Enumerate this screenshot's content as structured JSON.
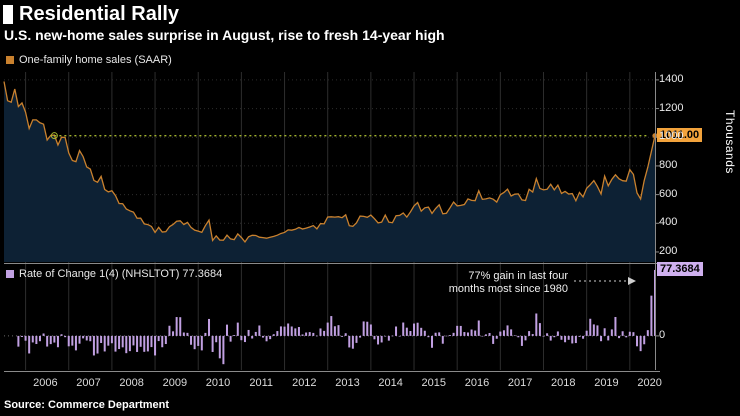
{
  "header": {
    "title": "Residential Rally",
    "subtitle": "U.S. new-home sales surprise in August, rise to fresh 14-year high"
  },
  "top_panel": {
    "legend": "One-family home sales (SAAR)",
    "axis_title": "Thousands",
    "y_ticks": [
      200,
      400,
      600,
      800,
      1000,
      1200,
      1400
    ],
    "last_value_label": "1011.00"
  },
  "bottom_panel": {
    "legend": "Rate of Change 1(4) (NHSLTOT) 77.3684",
    "y_ticks": [
      0
    ],
    "last_value_label": "77.3684",
    "annotation": {
      "line1": "77% gain in last four",
      "line2": "months most since 1980"
    }
  },
  "x_axis": {
    "year_labels": [
      "2006",
      "2007",
      "2008",
      "2009",
      "2010",
      "2011",
      "2012",
      "2013",
      "2014",
      "2015",
      "2016",
      "2017",
      "2018",
      "2019",
      "2020"
    ]
  },
  "footer": {
    "source": "Source: Commerce Department"
  },
  "colors": {
    "background": "#000000",
    "area_fill": "#0d2134",
    "line": "#c9812e",
    "value_box_sales": "#f2a33c",
    "bars": "#c1a0e2",
    "value_box_roc": "#cfb0ef",
    "threshold": "#a4b52f",
    "grid": "#2d2d2d",
    "axis": "#8a8a8a"
  },
  "chart_data": [
    {
      "type": "area",
      "title": "One-family home sales (SAAR)",
      "unit": "thousands, seasonally adjusted annual rate",
      "x_start": "2005-07",
      "x_end": "2020-08",
      "x_freq": "monthly",
      "ylim": [
        130,
        1455
      ],
      "last_value": 1011,
      "threshold_value": 1011,
      "values": [
        1389,
        1255,
        1244,
        1336,
        1214,
        1239,
        1174,
        1061,
        1121,
        1121,
        1101,
        1091,
        981,
        1013,
        1015,
        946,
        1000,
        998,
        891,
        838,
        830,
        907,
        865,
        793,
        778,
        699,
        686,
        727,
        636,
        619,
        627,
        593,
        538,
        536,
        500,
        487,
        478,
        435,
        436,
        396,
        391,
        378,
        336,
        372,
        339,
        342,
        376,
        392,
        414,
        417,
        391,
        406,
        371,
        352,
        345,
        337,
        384,
        422,
        280,
        312,
        283,
        282,
        317,
        291,
        286,
        326,
        301,
        270,
        306,
        316,
        315,
        303,
        300,
        296,
        303,
        309,
        317,
        329,
        336,
        354,
        352,
        358,
        371,
        360,
        366,
        374,
        384,
        361,
        398,
        396,
        444,
        445,
        443,
        446,
        439,
        459,
        383,
        379,
        403,
        450,
        448,
        442,
        457,
        432,
        403,
        408,
        457,
        408,
        404,
        453,
        455,
        472,
        443,
        479,
        521,
        545,
        485,
        508,
        513,
        469,
        503,
        529,
        466,
        470,
        508,
        548,
        521,
        525,
        531,
        570,
        560,
        558,
        627,
        567,
        570,
        577,
        568,
        548,
        599,
        615,
        638,
        590,
        603,
        605,
        563,
        559,
        637,
        618,
        711,
        643,
        633,
        637,
        672,
        633,
        666,
        608,
        622,
        604,
        607,
        557,
        615,
        584,
        644,
        669,
        698,
        656,
        604,
        729,
        661,
        706,
        738,
        710,
        697,
        694,
        774,
        741,
        612,
        570,
        698,
        791,
        901,
        1011
      ]
    },
    {
      "type": "bar",
      "title": "Rate of Change 1(4) (NHSLTOT)",
      "derived_from": "4-month percent change of chart 1 monthly values: (v[i]/v[i-4]-1)*100",
      "ylim": [
        -40,
        82
      ],
      "last_value": 77.3684
    }
  ]
}
